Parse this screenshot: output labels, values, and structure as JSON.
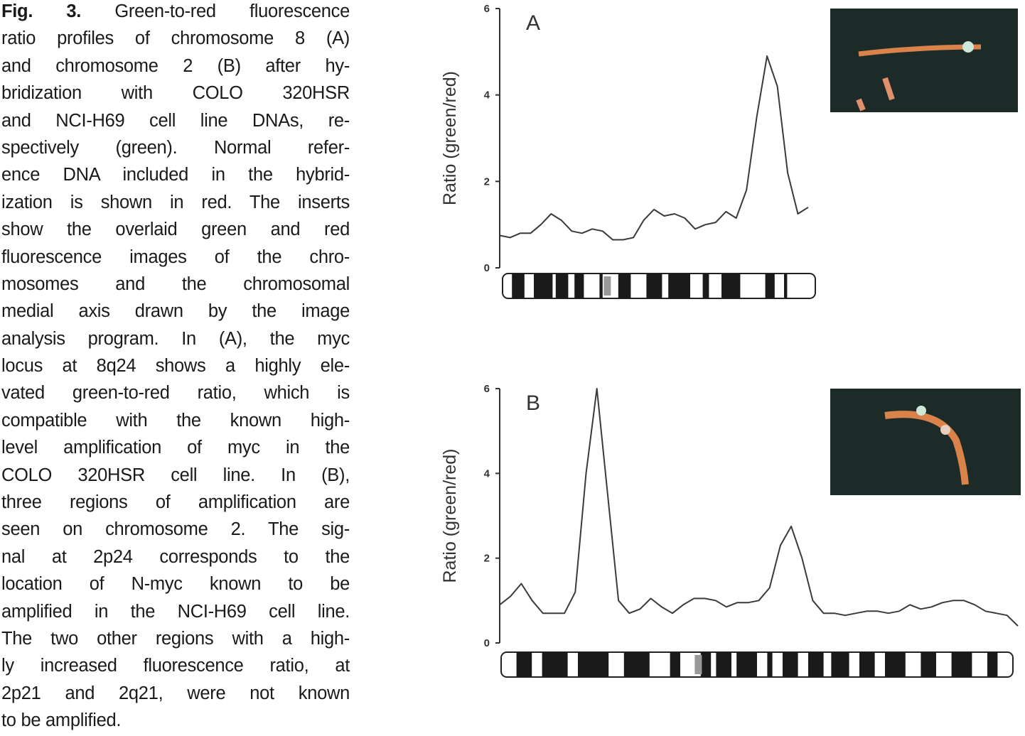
{
  "caption": {
    "label": "Fig. 3.",
    "lines": [
      "Green-to-red fluorescence",
      "ratio profiles of chromosome 8 (A)",
      "and chromosome 2 (B) after hy-",
      "bridization with COLO 320HSR",
      "and NCI-H69 cell line DNAs, re-",
      "spectively (green). Normal refer-",
      "ence DNA included in the hybrid-",
      "ization is shown in red. The inserts",
      "show the overlaid green and red",
      "fluorescence images of the chro-",
      "mosomes and the chromosomal",
      "medial axis drawn by the image",
      "analysis program. In (A), the myc",
      "locus at 8q24 shows a highly ele-",
      "vated green-to-red ratio, which is",
      "compatible with the known high-",
      "level amplification of myc in the",
      "COLO 320HSR cell line. In (B),",
      "three regions of amplification are",
      "seen on chromosome 2. The sig-",
      "nal at 2p24 corresponds to the",
      "location of N-myc known to be",
      "amplified in the NCI-H69 cell line.",
      "The two other regions with a high-",
      "ly increased fluorescence ratio, at",
      "2p21 and 2q21, were not known",
      "to be amplified."
    ]
  },
  "chart_data": [
    {
      "type": "line",
      "panel": "A",
      "ylabel": "Ratio (green/red)",
      "color": "#3a3a3a",
      "values": [
        0.75,
        0.7,
        0.8,
        0.8,
        1.0,
        1.25,
        1.1,
        0.85,
        0.8,
        0.9,
        0.85,
        0.65,
        0.65,
        0.7,
        1.1,
        1.35,
        1.2,
        1.25,
        1.15,
        0.9,
        1.0,
        1.05,
        1.3,
        1.15,
        1.8,
        3.5,
        4.9,
        4.2,
        2.2,
        1.25,
        1.4
      ],
      "ylim": [
        0,
        6
      ],
      "yticks": [
        0,
        2,
        4,
        6
      ]
    },
    {
      "type": "line",
      "panel": "B",
      "ylabel": "Ratio (green/red)",
      "color": "#3a3a3a",
      "values": [
        0.9,
        1.1,
        1.4,
        1.0,
        0.7,
        0.7,
        0.7,
        1.2,
        4.0,
        6.0,
        3.5,
        1.0,
        0.7,
        0.8,
        1.05,
        0.85,
        0.7,
        0.9,
        1.05,
        1.05,
        1.0,
        0.85,
        0.95,
        0.95,
        1.0,
        1.3,
        2.3,
        2.75,
        2.0,
        1.0,
        0.7,
        0.7,
        0.65,
        0.7,
        0.75,
        0.75,
        0.7,
        0.75,
        0.9,
        0.8,
        0.85,
        0.95,
        1.0,
        1.0,
        0.9,
        0.75,
        0.7,
        0.65,
        0.4
      ],
      "ylim": [
        0,
        6
      ],
      "yticks": [
        0,
        2,
        4,
        6
      ]
    }
  ]
}
